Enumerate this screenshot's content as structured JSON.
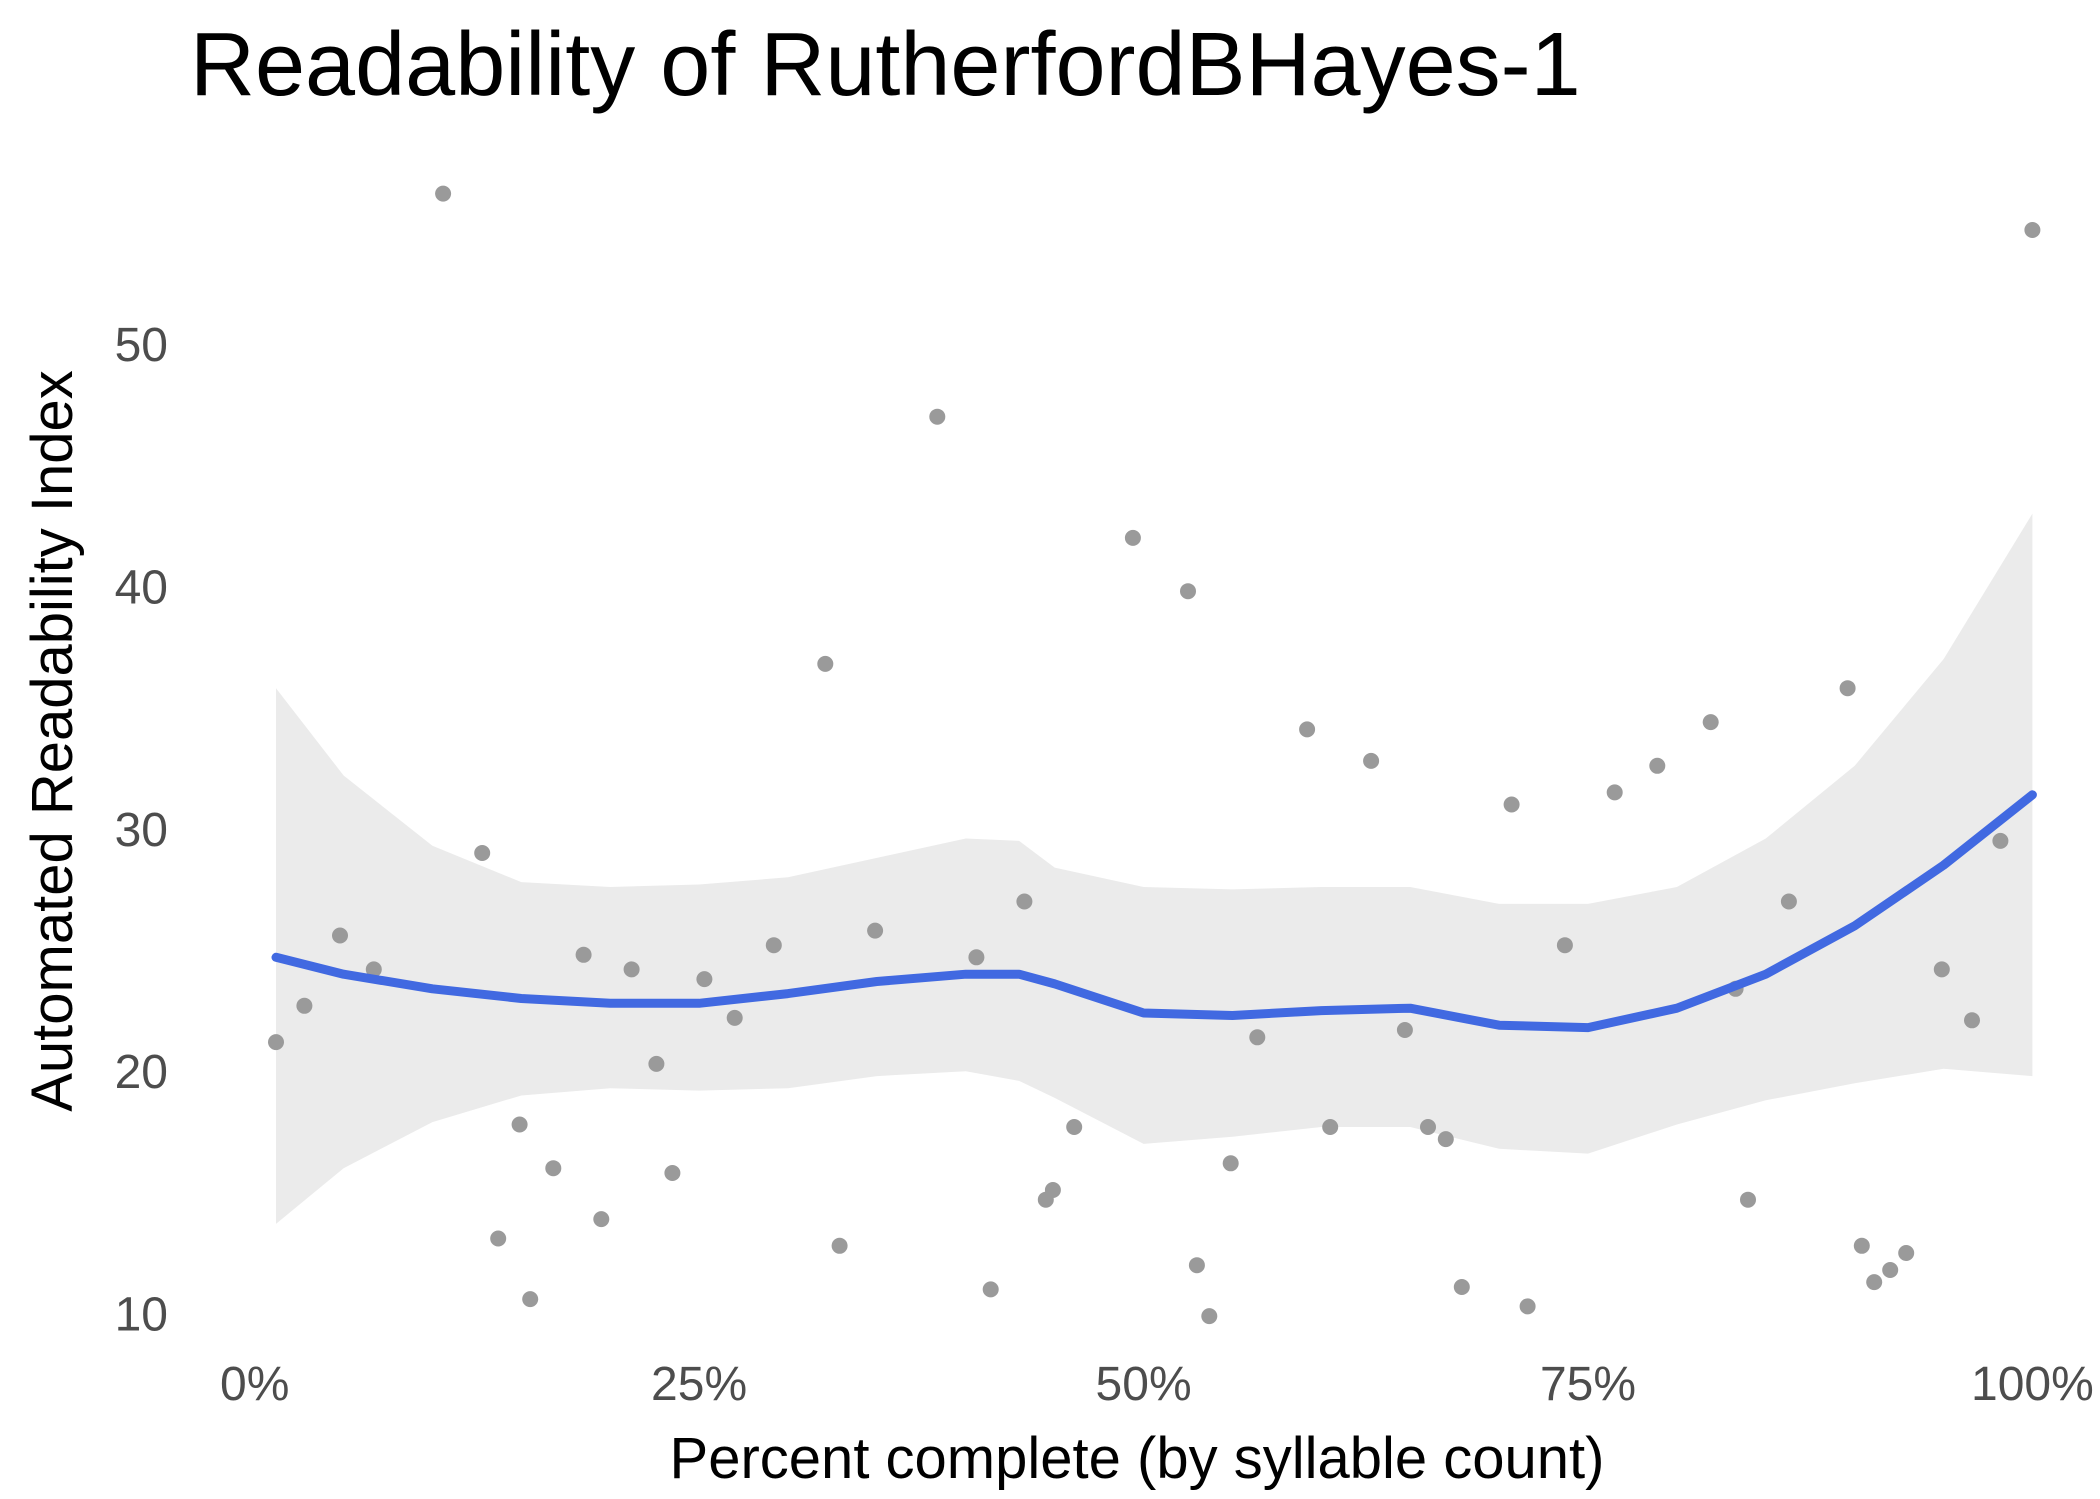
{
  "chart_data": {
    "type": "scatter",
    "title": "Readability of RutherfordBHayes-1",
    "xlabel": "Percent complete (by syllable count)",
    "ylabel": "Automated Readability Index",
    "xlim": [
      -0.015,
      1.02
    ],
    "ylim": [
      8.5,
      58
    ],
    "x_ticks": [
      0,
      0.25,
      0.5,
      0.75,
      1
    ],
    "x_tick_labels": [
      "0%",
      "25%",
      "50%",
      "75%",
      "100%"
    ],
    "y_ticks": [
      10,
      20,
      30,
      40,
      50
    ],
    "y_tick_labels": [
      "10",
      "20",
      "30",
      "40",
      "50"
    ],
    "grid": false,
    "colors": {
      "points": "#9a9a9a",
      "smooth": "#4169e1",
      "band": "#ebebeb"
    },
    "points": [
      [
        0.012,
        21.2
      ],
      [
        0.028,
        22.7
      ],
      [
        0.048,
        25.6
      ],
      [
        0.067,
        24.2
      ],
      [
        0.106,
        56.2
      ],
      [
        0.128,
        29.0
      ],
      [
        0.137,
        13.1
      ],
      [
        0.149,
        17.8
      ],
      [
        0.155,
        10.6
      ],
      [
        0.168,
        16.0
      ],
      [
        0.185,
        24.8
      ],
      [
        0.195,
        13.9
      ],
      [
        0.212,
        24.2
      ],
      [
        0.226,
        20.3
      ],
      [
        0.235,
        15.8
      ],
      [
        0.253,
        23.8
      ],
      [
        0.27,
        22.2
      ],
      [
        0.292,
        25.2
      ],
      [
        0.321,
        36.8
      ],
      [
        0.329,
        12.8
      ],
      [
        0.349,
        25.8
      ],
      [
        0.384,
        47.0
      ],
      [
        0.406,
        24.7
      ],
      [
        0.414,
        11.0
      ],
      [
        0.433,
        27.0
      ],
      [
        0.445,
        14.7
      ],
      [
        0.449,
        15.1
      ],
      [
        0.461,
        17.7
      ],
      [
        0.494,
        42.0
      ],
      [
        0.525,
        39.8
      ],
      [
        0.53,
        12.0
      ],
      [
        0.537,
        9.9
      ],
      [
        0.549,
        16.2
      ],
      [
        0.564,
        21.4
      ],
      [
        0.592,
        34.1
      ],
      [
        0.605,
        17.7
      ],
      [
        0.628,
        32.8
      ],
      [
        0.647,
        21.7
      ],
      [
        0.66,
        17.7
      ],
      [
        0.67,
        17.2
      ],
      [
        0.679,
        11.1
      ],
      [
        0.707,
        31.0
      ],
      [
        0.716,
        10.3
      ],
      [
        0.737,
        25.2
      ],
      [
        0.765,
        31.5
      ],
      [
        0.789,
        32.6
      ],
      [
        0.819,
        34.4
      ],
      [
        0.833,
        23.4
      ],
      [
        0.84,
        14.7
      ],
      [
        0.863,
        27.0
      ],
      [
        0.896,
        35.8
      ],
      [
        0.904,
        12.8
      ],
      [
        0.911,
        11.3
      ],
      [
        0.92,
        11.8
      ],
      [
        0.929,
        12.5
      ],
      [
        0.949,
        24.2
      ],
      [
        0.966,
        22.1
      ],
      [
        0.982,
        29.5
      ],
      [
        1.0,
        54.7
      ]
    ],
    "smooth": {
      "x": [
        0.012,
        0.05,
        0.1,
        0.15,
        0.2,
        0.25,
        0.3,
        0.35,
        0.4,
        0.43,
        0.45,
        0.5,
        0.55,
        0.6,
        0.65,
        0.7,
        0.75,
        0.8,
        0.85,
        0.9,
        0.95,
        1.0
      ],
      "y": [
        24.7,
        24.0,
        23.4,
        23.0,
        22.8,
        22.8,
        23.2,
        23.7,
        24.0,
        24.0,
        23.6,
        22.4,
        22.3,
        22.5,
        22.6,
        21.9,
        21.8,
        22.6,
        24.0,
        26.0,
        28.5,
        31.4
      ],
      "lower": [
        13.7,
        16.0,
        17.9,
        19.0,
        19.3,
        19.2,
        19.3,
        19.8,
        20.0,
        19.6,
        18.9,
        17.0,
        17.3,
        17.7,
        17.7,
        16.8,
        16.6,
        17.8,
        18.8,
        19.5,
        20.1,
        19.8
      ],
      "upper": [
        35.8,
        32.2,
        29.3,
        27.8,
        27.6,
        27.7,
        28.0,
        28.8,
        29.6,
        29.5,
        28.4,
        27.6,
        27.5,
        27.6,
        27.6,
        26.9,
        26.9,
        27.6,
        29.6,
        32.6,
        37.0,
        43.0
      ]
    }
  }
}
